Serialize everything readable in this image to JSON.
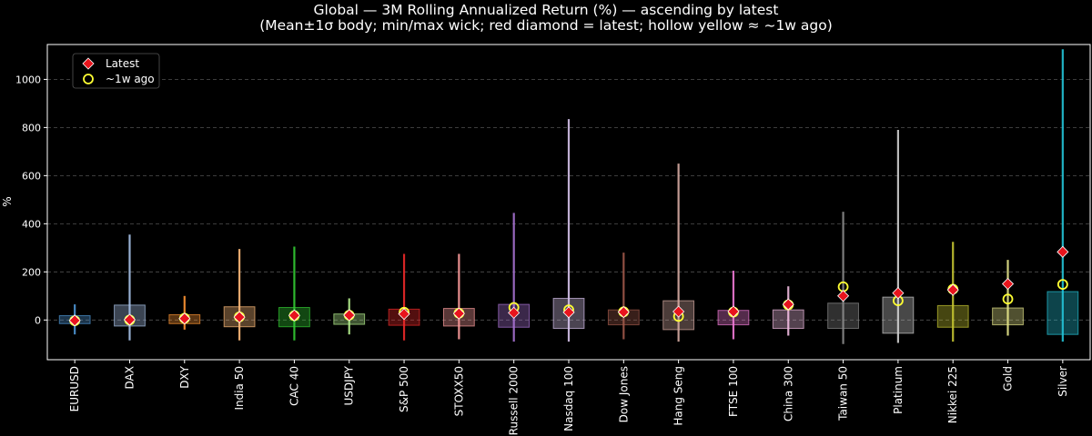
{
  "chart_data": {
    "type": "box-range",
    "title": "Global — 3M Rolling Annualized Return (%) — ascending by latest",
    "subtitle": "(Mean±1σ body; min/max wick; red diamond = latest; hollow yellow ≈ ~1w ago)",
    "ylabel": "%",
    "xlabel": "",
    "ylim": [
      -165,
      1145
    ],
    "yticks": [
      0,
      200,
      400,
      600,
      800,
      1000
    ],
    "grid": true,
    "legend": {
      "position": "top-left",
      "latest_label": "Latest",
      "week_ago_label": "~1w ago"
    },
    "markers": {
      "latest_color": "#e8141c",
      "week_ago_color": "#ffff33"
    },
    "series": [
      {
        "name": "EURUSD",
        "color": "#4f97d6",
        "min": -60,
        "max": 65,
        "mean_minus_sd": -15,
        "mean_plus_sd": 18,
        "latest": -2,
        "week_ago": -3
      },
      {
        "name": "DAX",
        "color": "#a9c4ea",
        "min": -85,
        "max": 355,
        "mean_minus_sd": -25,
        "mean_plus_sd": 62,
        "latest": 1,
        "week_ago": 0
      },
      {
        "name": "DXY",
        "color": "#ff9533",
        "min": -40,
        "max": 100,
        "mean_minus_sd": -15,
        "mean_plus_sd": 22,
        "latest": 6,
        "week_ago": 7
      },
      {
        "name": "India 50",
        "color": "#ffbc7a",
        "min": -85,
        "max": 295,
        "mean_minus_sd": -28,
        "mean_plus_sd": 55,
        "latest": 12,
        "week_ago": 13
      },
      {
        "name": "CAC 40",
        "color": "#33cc33",
        "min": -85,
        "max": 305,
        "mean_minus_sd": -28,
        "mean_plus_sd": 52,
        "latest": 19,
        "week_ago": 18
      },
      {
        "name": "USDJPY",
        "color": "#b5f08e",
        "min": -60,
        "max": 90,
        "mean_minus_sd": -18,
        "mean_plus_sd": 25,
        "latest": 20,
        "week_ago": 20
      },
      {
        "name": "S&P 500",
        "color": "#ee2a2a",
        "min": -85,
        "max": 275,
        "mean_minus_sd": -22,
        "mean_plus_sd": 45,
        "latest": 25,
        "week_ago": 32
      },
      {
        "name": "STOXX50",
        "color": "#ff9e9e",
        "min": -80,
        "max": 275,
        "mean_minus_sd": -25,
        "mean_plus_sd": 48,
        "latest": 27,
        "week_ago": 28
      },
      {
        "name": "Russell 2000",
        "color": "#a974d4",
        "min": -90,
        "max": 445,
        "mean_minus_sd": -30,
        "mean_plus_sd": 65,
        "latest": 30,
        "week_ago": 52
      },
      {
        "name": "Nasdaq 100",
        "color": "#d6c2ec",
        "min": -90,
        "max": 835,
        "mean_minus_sd": -35,
        "mean_plus_sd": 90,
        "latest": 32,
        "week_ago": 42
      },
      {
        "name": "Dow Jones",
        "color": "#a0594a",
        "min": -80,
        "max": 280,
        "mean_minus_sd": -20,
        "mean_plus_sd": 42,
        "latest": 33,
        "week_ago": 34
      },
      {
        "name": "Hang Seng",
        "color": "#d8aca4",
        "min": -90,
        "max": 650,
        "mean_minus_sd": -40,
        "mean_plus_sd": 80,
        "latest": 35,
        "week_ago": 15
      },
      {
        "name": "FTSE 100",
        "color": "#f07ad6",
        "min": -80,
        "max": 205,
        "mean_minus_sd": -20,
        "mean_plus_sd": 40,
        "latest": 35,
        "week_ago": 33
      },
      {
        "name": "China 300",
        "color": "#f2bce2",
        "min": -65,
        "max": 140,
        "mean_minus_sd": -35,
        "mean_plus_sd": 42,
        "latest": 65,
        "week_ago": 63
      },
      {
        "name": "Taiwan 50",
        "color": "#8a8a8a",
        "min": -100,
        "max": 450,
        "mean_minus_sd": -35,
        "mean_plus_sd": 70,
        "latest": 100,
        "week_ago": 138
      },
      {
        "name": "Platinum",
        "color": "#cfcfcf",
        "min": -95,
        "max": 790,
        "mean_minus_sd": -55,
        "mean_plus_sd": 95,
        "latest": 112,
        "week_ago": 80
      },
      {
        "name": "Nikkei 225",
        "color": "#c8c832",
        "min": -90,
        "max": 325,
        "mean_minus_sd": -30,
        "mean_plus_sd": 60,
        "latest": 125,
        "week_ago": 128
      },
      {
        "name": "Gold",
        "color": "#e6e68a",
        "min": -65,
        "max": 250,
        "mean_minus_sd": -20,
        "mean_plus_sd": 50,
        "latest": 150,
        "week_ago": 87
      },
      {
        "name": "Silver",
        "color": "#24c4d8",
        "min": -90,
        "max": 1125,
        "mean_minus_sd": -60,
        "mean_plus_sd": 118,
        "latest": 283,
        "week_ago": 148
      }
    ]
  }
}
